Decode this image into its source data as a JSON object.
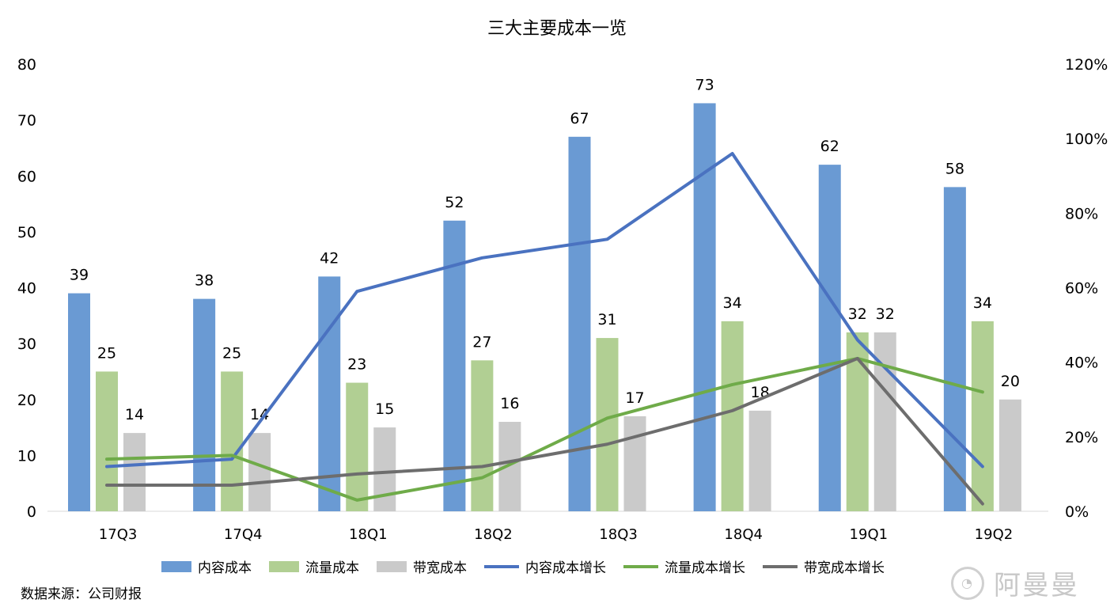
{
  "chart_data": {
    "type": "bar",
    "title": "三大主要成本一览",
    "categories": [
      "17Q3",
      "17Q4",
      "18Q1",
      "18Q2",
      "18Q3",
      "18Q4",
      "19Q1",
      "19Q2"
    ],
    "y_left": {
      "ylim": [
        0,
        80
      ],
      "ticks": [
        "0",
        "10",
        "20",
        "30",
        "40",
        "50",
        "60",
        "70",
        "80"
      ]
    },
    "y_right": {
      "ylim": [
        0,
        1.2
      ],
      "ticks": [
        "0%",
        "20%",
        "40%",
        "60%",
        "80%",
        "100%",
        "120%"
      ]
    },
    "bar_series": [
      {
        "name": "内容成本",
        "color": "#6a9ad3",
        "values": [
          39,
          38,
          42,
          52,
          67,
          73,
          62,
          58
        ]
      },
      {
        "name": "流量成本",
        "color": "#b1cf93",
        "values": [
          25,
          25,
          23,
          27,
          31,
          34,
          32,
          34
        ]
      },
      {
        "name": "带宽成本",
        "color": "#cacaca",
        "values": [
          14,
          14,
          15,
          16,
          17,
          18,
          32,
          20
        ]
      }
    ],
    "line_series": [
      {
        "name": "内容成本增长",
        "color": "#4a72c0",
        "values": [
          0.12,
          0.14,
          0.59,
          0.68,
          0.73,
          0.96,
          0.46,
          0.12
        ]
      },
      {
        "name": "流量成本增长",
        "color": "#6fab49",
        "values": [
          0.14,
          0.15,
          0.03,
          0.09,
          0.25,
          0.34,
          0.41,
          0.32
        ]
      },
      {
        "name": "带宽成本增长",
        "color": "#6d6d6d",
        "values": [
          0.07,
          0.07,
          0.1,
          0.12,
          0.18,
          0.27,
          0.41,
          0.02
        ]
      }
    ],
    "legend_position": "bottom"
  },
  "footer": {
    "source": "数据来源：公司财报"
  },
  "watermark": {
    "text": "阿曼曼"
  }
}
